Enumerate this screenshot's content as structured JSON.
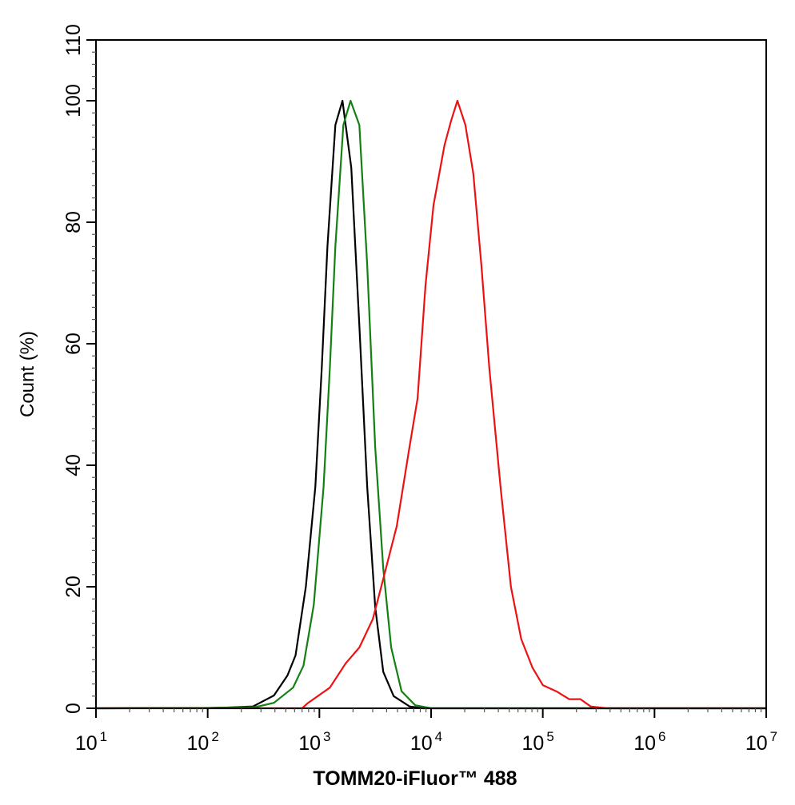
{
  "chart_data": {
    "type": "line",
    "title": "",
    "xlabel": "TOMM20-iFluor™ 488",
    "ylabel": "Count  (%)",
    "xscale": "log",
    "xlim": [
      10,
      10000000
    ],
    "ylim": [
      0,
      110
    ],
    "x_ticks": [
      {
        "base": "10",
        "exp": "1"
      },
      {
        "base": "10",
        "exp": "2"
      },
      {
        "base": "10",
        "exp": "3"
      },
      {
        "base": "10",
        "exp": "4"
      },
      {
        "base": "10",
        "exp": "5"
      },
      {
        "base": "10",
        "exp": "6"
      },
      {
        "base": "10",
        "exp": "7"
      }
    ],
    "y_ticks": [
      "0",
      "20",
      "40",
      "60",
      "80",
      "100",
      "110"
    ],
    "grid": false,
    "legend": "none",
    "series": [
      {
        "color": "#000000",
        "points": [
          [
            10,
            0
          ],
          [
            100,
            0.05
          ],
          [
            139,
            0.1
          ],
          [
            255,
            0.3
          ],
          [
            392,
            2.1
          ],
          [
            518,
            5.4
          ],
          [
            611,
            8.7
          ],
          [
            757,
            20
          ],
          [
            920,
            36.5
          ],
          [
            1050,
            56
          ],
          [
            1180,
            76
          ],
          [
            1390,
            96
          ],
          [
            1610,
            100
          ],
          [
            1930,
            89
          ],
          [
            2280,
            63
          ],
          [
            2680,
            36.5
          ],
          [
            3160,
            16.7
          ],
          [
            3730,
            6
          ],
          [
            4620,
            2
          ],
          [
            6410,
            0.3
          ],
          [
            8480,
            0
          ],
          [
            10000000,
            0
          ]
        ]
      },
      {
        "color": "#138013",
        "points": [
          [
            10,
            0
          ],
          [
            100,
            0.05
          ],
          [
            268,
            0.2
          ],
          [
            392,
            0.9
          ],
          [
            581,
            3.4
          ],
          [
            720,
            7
          ],
          [
            891,
            17
          ],
          [
            1090,
            36.5
          ],
          [
            1240,
            56
          ],
          [
            1390,
            76
          ],
          [
            1640,
            96
          ],
          [
            1900,
            100
          ],
          [
            2280,
            96
          ],
          [
            2680,
            73
          ],
          [
            3160,
            43
          ],
          [
            3730,
            23
          ],
          [
            4390,
            10
          ],
          [
            5440,
            2.8
          ],
          [
            7200,
            0.5
          ],
          [
            10000,
            0
          ],
          [
            10000000,
            0
          ]
        ]
      },
      {
        "color": "#ee1111",
        "points": [
          [
            10,
            0
          ],
          [
            700,
            0
          ],
          [
            782,
            0.8
          ],
          [
            1240,
            3.4
          ],
          [
            1720,
            7.4
          ],
          [
            2280,
            10
          ],
          [
            3010,
            14.7
          ],
          [
            3730,
            21.3
          ],
          [
            4930,
            30
          ],
          [
            6410,
            43
          ],
          [
            7570,
            51
          ],
          [
            8910,
            69.6
          ],
          [
            10500,
            82.8
          ],
          [
            13200,
            92.7
          ],
          [
            15100,
            96.7
          ],
          [
            17200,
            100
          ],
          [
            20300,
            96
          ],
          [
            23900,
            88
          ],
          [
            28200,
            72.9
          ],
          [
            33200,
            56
          ],
          [
            41800,
            36.5
          ],
          [
            51800,
            20
          ],
          [
            64100,
            11.4
          ],
          [
            80700,
            6.7
          ],
          [
            100000,
            3.8
          ],
          [
            132000,
            2.8
          ],
          [
            172000,
            1.5
          ],
          [
            217000,
            1.5
          ],
          [
            268000,
            0.3
          ],
          [
            373000,
            0
          ],
          [
            10000000,
            0
          ]
        ]
      }
    ]
  }
}
